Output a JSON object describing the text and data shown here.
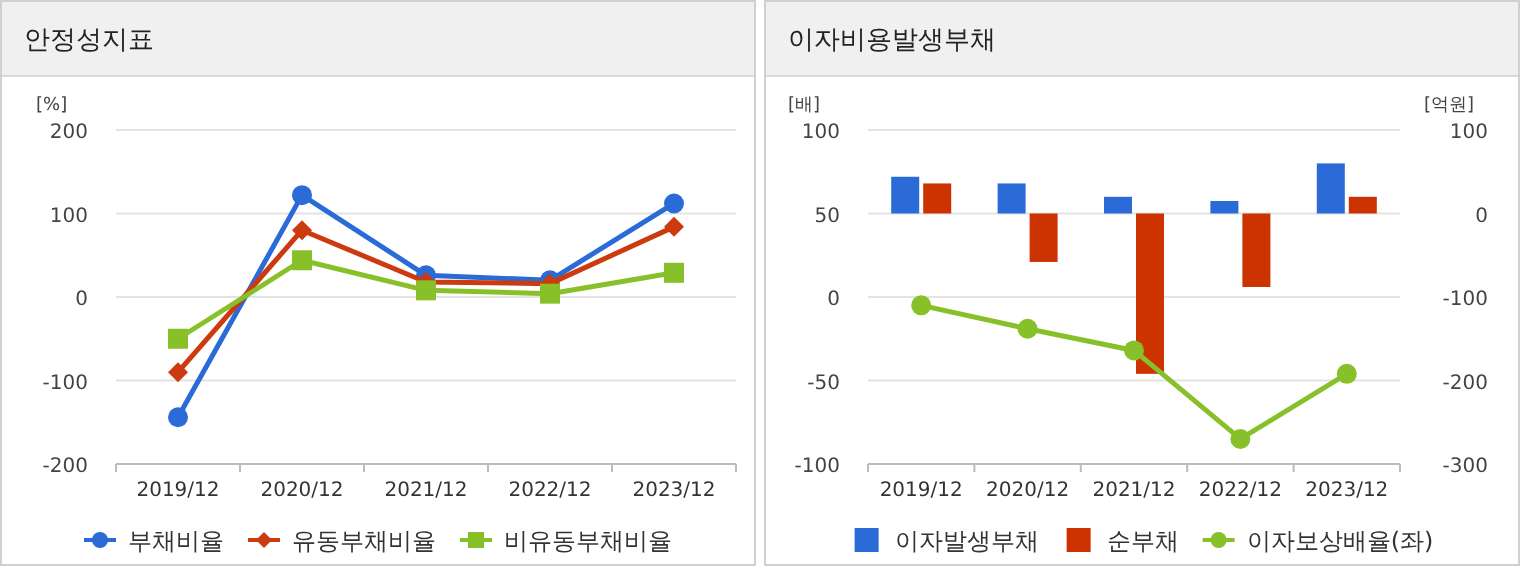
{
  "chart_data": [
    {
      "type": "line",
      "title": "안정성지표",
      "ylabel": "[%]",
      "categories": [
        "2019/12",
        "2020/12",
        "2021/12",
        "2022/12",
        "2023/12"
      ],
      "ylim": [
        -200,
        200
      ],
      "yticks": [
        -200,
        -100,
        0,
        100,
        200
      ],
      "grid": "y",
      "legend": "bottom",
      "series": [
        {
          "name": "부채비율",
          "color": "#2a6bd8",
          "marker": "circle",
          "values": [
            -144,
            122,
            26,
            20,
            112
          ]
        },
        {
          "name": "유동부채비율",
          "color": "#cc3a10",
          "marker": "diamond",
          "values": [
            -90,
            80,
            18,
            16,
            84
          ]
        },
        {
          "name": "비유동부채비율",
          "color": "#88c02a",
          "marker": "square",
          "values": [
            -50,
            44,
            8,
            4,
            29
          ]
        }
      ]
    },
    {
      "type": "bar",
      "title": "이자비용발생부채",
      "ylabel": "[배]",
      "y2label": "[억원]",
      "categories": [
        "2019/12",
        "2020/12",
        "2021/12",
        "2022/12",
        "2023/12"
      ],
      "ylim": [
        -100,
        100
      ],
      "yticks": [
        -100,
        -50,
        0,
        50,
        100
      ],
      "y2lim": [
        -300,
        100
      ],
      "y2ticks": [
        -300,
        -200,
        -100,
        0,
        100
      ],
      "grid": "y",
      "legend": "bottom",
      "series": [
        {
          "name": "이자발생부채",
          "color": "#2a6bd8",
          "axis": "y2",
          "values": [
            44,
            36,
            20,
            15,
            60
          ]
        },
        {
          "name": "순부채",
          "color": "#cc3300",
          "axis": "y2",
          "values": [
            36,
            -58,
            -192,
            -88,
            20
          ]
        },
        {
          "name": "이자보상배율(좌)",
          "type": "line",
          "color": "#88c02a",
          "marker": "circle",
          "axis": "y",
          "values": [
            -5,
            -19,
            -32,
            -85,
            -46
          ]
        }
      ]
    }
  ]
}
